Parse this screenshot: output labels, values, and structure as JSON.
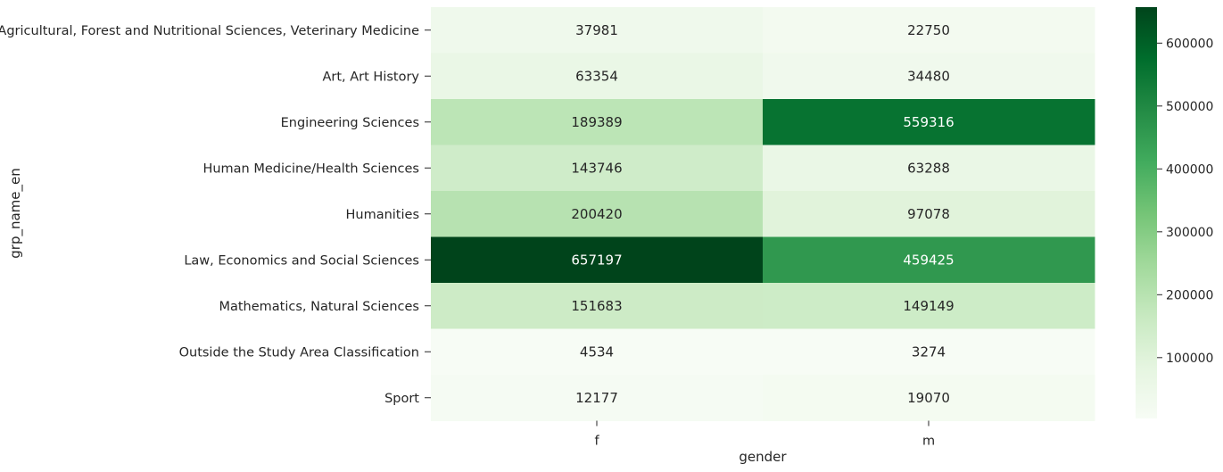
{
  "chart_data": {
    "type": "heatmap",
    "title": "",
    "xlabel": "gender",
    "ylabel": "grp_name_en",
    "columns": [
      "f",
      "m"
    ],
    "rows": [
      "Agricultural, Forest and Nutritional Sciences, Veterinary Medicine",
      "Art, Art History",
      "Engineering Sciences",
      "Human Medicine/Health Sciences",
      "Humanities",
      "Law, Economics and Social Sciences",
      "Mathematics, Natural Sciences",
      "Outside the Study Area Classification",
      "Sport"
    ],
    "values": [
      [
        37981,
        22750
      ],
      [
        63354,
        34480
      ],
      [
        189389,
        559316
      ],
      [
        143746,
        63288
      ],
      [
        200420,
        97078
      ],
      [
        657197,
        459425
      ],
      [
        151683,
        149149
      ],
      [
        4534,
        3274
      ],
      [
        12177,
        19070
      ]
    ],
    "colormap": "Greens",
    "colorbar": {
      "vmin": 3274,
      "vmax": 657197,
      "ticks": [
        100000,
        200000,
        300000,
        400000,
        500000,
        600000
      ]
    },
    "grid": false,
    "legend": "colorbar-right"
  }
}
